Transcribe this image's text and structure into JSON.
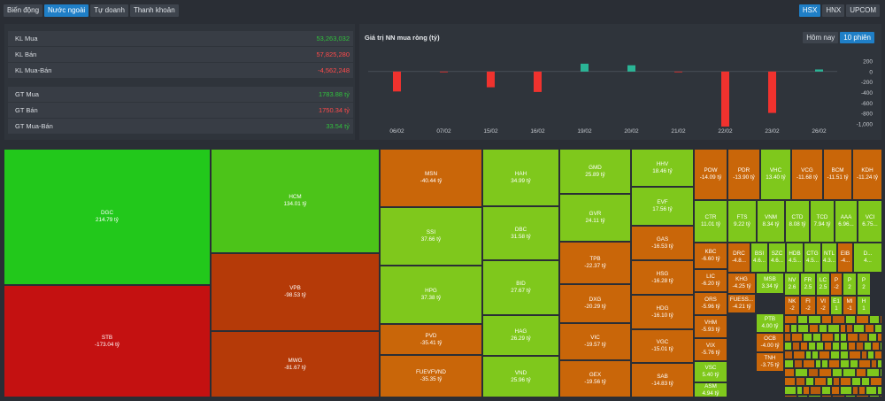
{
  "tabs": [
    "Biến động",
    "Nước ngoài",
    "Tự doanh",
    "Thanh khoản"
  ],
  "active_tab": 1,
  "exchanges": [
    "HSX",
    "HNX",
    "UPCOM"
  ],
  "active_exchange": 0,
  "stats": [
    {
      "label": "KL Mua",
      "value": "53,263,032",
      "tone": "pos"
    },
    {
      "label": "KL Bán",
      "value": "57,825,280",
      "tone": "neg"
    },
    {
      "label": "KL Mua-Bán",
      "value": "-4,562,248",
      "tone": "neg"
    },
    {
      "label": "GT Mua",
      "value": "1783.88 tỷ",
      "tone": "pos"
    },
    {
      "label": "GT Bán",
      "value": "1750.34 tỷ",
      "tone": "neg"
    },
    {
      "label": "GT Mua-Bán",
      "value": "33.54 tỷ",
      "tone": "pos"
    }
  ],
  "chart_toggle": [
    "Hôm nay",
    "10 phiên"
  ],
  "chart_toggle_active": 1,
  "colors": {
    "positive": "#2ab596",
    "negative": "#f0322e",
    "up_text": "#31c13d",
    "down_text": "#ff4a4a",
    "accent": "#1f7fc7"
  },
  "chart_data": {
    "type": "bar",
    "title": "Giá trị NN mua ròng (tỷ)",
    "categories": [
      "06/02",
      "07/02",
      "15/02",
      "16/02",
      "19/02",
      "20/02",
      "21/02",
      "22/02",
      "23/02",
      "26/02"
    ],
    "values": [
      -380,
      -8,
      -300,
      -390,
      150,
      120,
      -10,
      -1050,
      -790,
      40
    ],
    "ylim": [
      -1000,
      200
    ],
    "yticks": [
      200,
      0,
      -200,
      -400,
      -600,
      -800,
      -1000
    ],
    "ytick_labels": [
      "200",
      "0",
      "-200",
      "-400",
      "-600",
      "-800",
      "-1,000"
    ]
  },
  "treemap": [
    {
      "name": "DGC",
      "value": "214.79 tỷ",
      "c": "g1"
    },
    {
      "name": "STB",
      "value": "-173.04 tỷ",
      "c": "r1"
    },
    {
      "name": "HCM",
      "value": "134.01 tỷ",
      "c": "g2"
    },
    {
      "name": "VPB",
      "value": "-98.53 tỷ",
      "c": "r2"
    },
    {
      "name": "MWG",
      "value": "-81.67 tỷ",
      "c": "r2"
    },
    {
      "name": "MSN",
      "value": "-40.44 tỷ",
      "c": "o1"
    },
    {
      "name": "SSI",
      "value": "37.66 tỷ",
      "c": "g3"
    },
    {
      "name": "HPG",
      "value": "37.38 tỷ",
      "c": "g3"
    },
    {
      "name": "PVD",
      "value": "-35.41 tỷ",
      "c": "o1"
    },
    {
      "name": "FUEVFVND",
      "value": "-35.35 tỷ",
      "c": "o1"
    },
    {
      "name": "HAH",
      "value": "34.99 tỷ",
      "c": "g3"
    },
    {
      "name": "DBC",
      "value": "31.58 tỷ",
      "c": "g3"
    },
    {
      "name": "BID",
      "value": "27.67 tỷ",
      "c": "g3"
    },
    {
      "name": "HAG",
      "value": "26.29 tỷ",
      "c": "g3"
    },
    {
      "name": "VND",
      "value": "25.96 tỷ",
      "c": "g3"
    },
    {
      "name": "GMD",
      "value": "25.89 tỷ",
      "c": "g3"
    },
    {
      "name": "GVR",
      "value": "24.11 tỷ",
      "c": "g3"
    },
    {
      "name": "TPB",
      "value": "-22.37 tỷ",
      "c": "o1"
    },
    {
      "name": "DXG",
      "value": "-20.29 tỷ",
      "c": "o1"
    },
    {
      "name": "VIC",
      "value": "-19.57 tỷ",
      "c": "o1"
    },
    {
      "name": "GEX",
      "value": "-19.56 tỷ",
      "c": "o1"
    },
    {
      "name": "HHV",
      "value": "18.46 tỷ",
      "c": "g3"
    },
    {
      "name": "EVF",
      "value": "17.56 tỷ",
      "c": "g3"
    },
    {
      "name": "GAS",
      "value": "-16.53 tỷ",
      "c": "o1"
    },
    {
      "name": "HSG",
      "value": "-16.28 tỷ",
      "c": "o1"
    },
    {
      "name": "HDG",
      "value": "-16.10 tỷ",
      "c": "o1"
    },
    {
      "name": "VGC",
      "value": "-15.01 tỷ",
      "c": "o1"
    },
    {
      "name": "SAB",
      "value": "-14.83 tỷ",
      "c": "o1"
    },
    {
      "name": "POW",
      "value": "-14.09 tỷ",
      "c": "o1"
    },
    {
      "name": "PDR",
      "value": "-13.90 tỷ",
      "c": "o1"
    },
    {
      "name": "VHC",
      "value": "13.40 tỷ",
      "c": "g3"
    },
    {
      "name": "VCG",
      "value": "-11.68 tỷ",
      "c": "o1"
    },
    {
      "name": "BCM",
      "value": "-11.51 tỷ",
      "c": "o1"
    },
    {
      "name": "KDH",
      "value": "-11.24 tỷ",
      "c": "o1"
    },
    {
      "name": "CTR",
      "value": "11.01 tỷ",
      "c": "g3"
    },
    {
      "name": "FTS",
      "value": "9.22 tỷ",
      "c": "g3"
    },
    {
      "name": "VNM",
      "value": "8.34 tỷ",
      "c": "g3"
    },
    {
      "name": "CTD",
      "value": "8.08 tỷ",
      "c": "g3"
    },
    {
      "name": "TCD",
      "value": "7.94 tỷ",
      "c": "g3"
    },
    {
      "name": "AAA",
      "value": "6.96...",
      "c": "g3"
    },
    {
      "name": "VCI",
      "value": "6.75...",
      "c": "g3"
    },
    {
      "name": "KBC",
      "value": "-6.60 tỷ",
      "c": "o1"
    },
    {
      "name": "LIC",
      "value": "-6.20 tỷ",
      "c": "o1"
    },
    {
      "name": "ORS",
      "value": "-5.96 tỷ",
      "c": "o1"
    },
    {
      "name": "VHM",
      "value": "-5.93 tỷ",
      "c": "o1"
    },
    {
      "name": "VIX",
      "value": "-5.76 tỷ",
      "c": "o1"
    },
    {
      "name": "VSC",
      "value": "5.40 tỷ",
      "c": "g3"
    },
    {
      "name": "ASM",
      "value": "4.94 tỷ",
      "c": "g3"
    },
    {
      "name": "DRC",
      "value": "-4.8...",
      "c": "o1"
    },
    {
      "name": "BSI",
      "value": "4.6...",
      "c": "g3"
    },
    {
      "name": "SZC",
      "value": "4.6...",
      "c": "g3"
    },
    {
      "name": "HDB",
      "value": "4.5...",
      "c": "g3"
    },
    {
      "name": "CTG",
      "value": "4.5...",
      "c": "g3"
    },
    {
      "name": "NTL",
      "value": "4.3...",
      "c": "g3"
    },
    {
      "name": "EIB",
      "value": "-4...",
      "c": "o1"
    },
    {
      "name": "D...",
      "value": "4...",
      "c": "g3"
    },
    {
      "name": "KHG",
      "value": "-4.25 tỷ",
      "c": "o1"
    },
    {
      "name": "MSB",
      "value": "3.34 tỷ",
      "c": "g3"
    },
    {
      "name": "FUESS...",
      "value": "-4.21 tỷ",
      "c": "o1"
    },
    {
      "name": "PTB",
      "value": "4.00 tỷ",
      "c": "g3"
    },
    {
      "name": "OCB",
      "value": "-4.00 tỷ",
      "c": "o1"
    },
    {
      "name": "TNH",
      "value": "-3.75 tỷ",
      "c": "o1"
    },
    {
      "name": "NV",
      "value": "2.6",
      "c": "g3"
    },
    {
      "name": "FR",
      "value": "2.5",
      "c": "g3"
    },
    {
      "name": "LC",
      "value": "2.5",
      "c": "g3"
    },
    {
      "name": "P",
      "value": "-2",
      "c": "o1"
    },
    {
      "name": "P",
      "value": "2",
      "c": "g3"
    },
    {
      "name": "P",
      "value": "2",
      "c": "g3"
    },
    {
      "name": "NK",
      "value": "-2",
      "c": "o1"
    },
    {
      "name": "FI",
      "value": "-2",
      "c": "o1"
    },
    {
      "name": "VI",
      "value": "-2",
      "c": "o1"
    },
    {
      "name": "E1",
      "value": "1",
      "c": "g3"
    },
    {
      "name": "MI",
      "value": "-1",
      "c": "o1"
    },
    {
      "name": "H",
      "value": "1",
      "c": "g3"
    }
  ]
}
